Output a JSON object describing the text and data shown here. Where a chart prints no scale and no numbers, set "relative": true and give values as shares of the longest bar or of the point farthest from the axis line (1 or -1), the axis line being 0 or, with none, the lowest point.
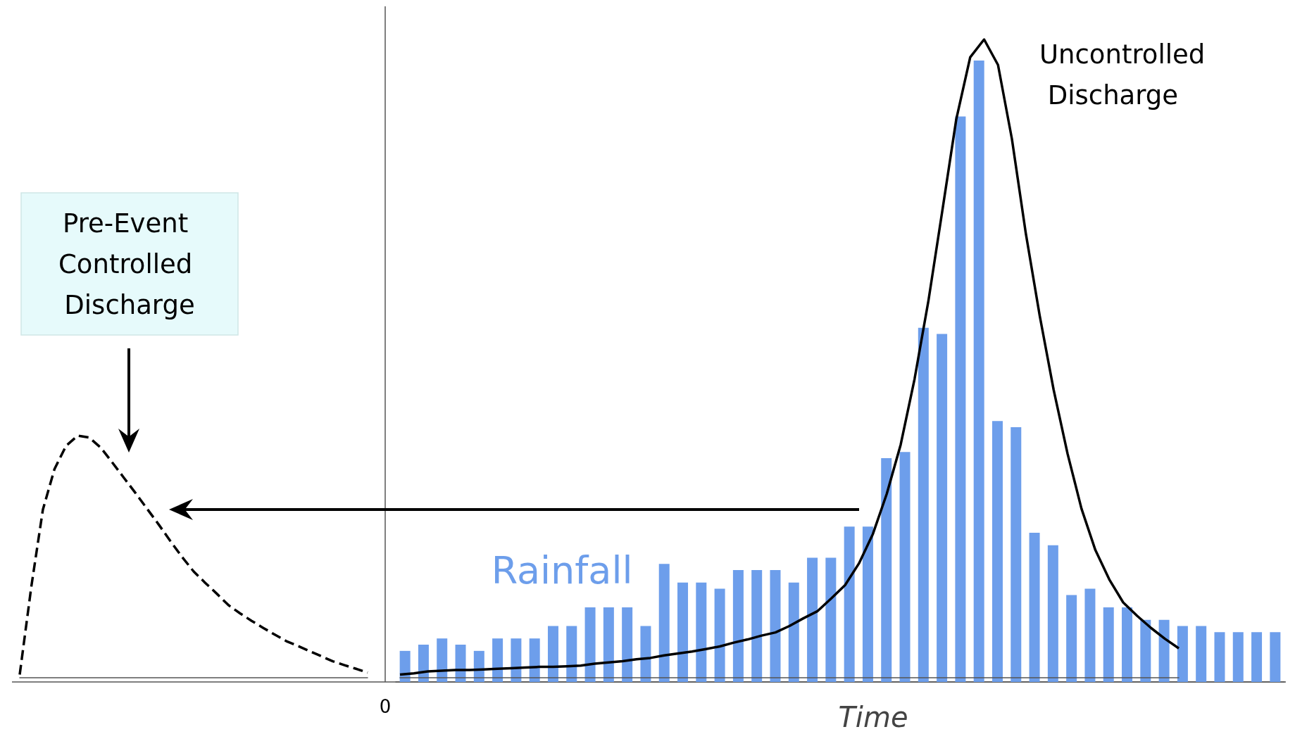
{
  "chart_data": [
    {
      "type": "bar",
      "relative": true,
      "xlabel": "Time",
      "annotations": [
        "0"
      ],
      "categories": [
        null,
        null,
        null,
        null,
        null,
        null,
        null,
        null,
        null,
        null,
        null,
        null,
        null,
        null,
        null,
        null,
        null,
        null,
        null,
        null,
        null,
        null,
        null,
        null,
        null,
        null,
        null,
        null,
        null,
        null,
        null,
        null,
        null,
        null,
        null,
        null,
        null,
        null,
        null,
        null,
        null,
        null,
        null,
        null,
        null,
        null,
        null,
        null
      ],
      "series": [
        {
          "name": "Rainfall",
          "color": "#6d9eeb",
          "values": [
            0.05,
            0.06,
            0.07,
            0.06,
            0.05,
            0.07,
            0.07,
            0.07,
            0.09,
            0.09,
            0.12,
            0.12,
            0.12,
            0.09,
            0.19,
            0.16,
            0.16,
            0.15,
            0.18,
            0.18,
            0.18,
            0.16,
            0.2,
            0.2,
            0.25,
            0.25,
            0.36,
            0.37,
            0.57,
            0.56,
            0.91,
            1,
            0.42,
            0.41,
            0.24,
            0.22,
            0.14,
            0.15,
            0.12,
            0.12,
            0.1,
            0.1,
            0.09,
            0.09,
            0.08,
            0.08,
            0.08,
            0.08
          ]
        }
      ]
    },
    {
      "type": "line",
      "relative": true,
      "marker": "none",
      "line_style": "solid",
      "categories": [
        null,
        null,
        null,
        null,
        null,
        null,
        null,
        null,
        null,
        null,
        null,
        null,
        null,
        null,
        null,
        null,
        null,
        null,
        null,
        null,
        null,
        null,
        null,
        null,
        null,
        null,
        null,
        null,
        null,
        null,
        null,
        null,
        null,
        null,
        null,
        null,
        null,
        null,
        null,
        null,
        null,
        null,
        null,
        null,
        null,
        null,
        null,
        null,
        null,
        null,
        null,
        null,
        null,
        null,
        null,
        null,
        null
      ],
      "series": [
        {
          "name": "Uncontrolled Discharge",
          "color": "#000000",
          "values": [
            0.005,
            0.007,
            0.01,
            0.011,
            0.012,
            0.012,
            0.013,
            0.014,
            0.015,
            0.016,
            0.017,
            0.017,
            0.018,
            0.019,
            0.022,
            0.024,
            0.026,
            0.029,
            0.031,
            0.035,
            0.038,
            0.041,
            0.045,
            0.049,
            0.055,
            0.06,
            0.066,
            0.071,
            0.081,
            0.093,
            0.104,
            0.124,
            0.145,
            0.179,
            0.225,
            0.288,
            0.365,
            0.468,
            0.591,
            0.732,
            0.875,
            0.972,
            1,
            0.96,
            0.844,
            0.696,
            0.567,
            0.451,
            0.351,
            0.265,
            0.2,
            0.154,
            0.118,
            0.097,
            0.078,
            0.061,
            0.046
          ]
        }
      ]
    },
    {
      "type": "line",
      "relative": true,
      "marker": "none",
      "line_style": "dashed",
      "categories": [
        null,
        null,
        null,
        null,
        null,
        null,
        null,
        null,
        null,
        null,
        null,
        null,
        null,
        null,
        null,
        null,
        null,
        null,
        null,
        null,
        null,
        null,
        null,
        null,
        null,
        null,
        null,
        null,
        null,
        null,
        null
      ],
      "series": [
        {
          "name": "Pre-Event Controlled Discharge",
          "color": "#000000",
          "values": [
            0.013,
            0.376,
            0.695,
            0.862,
            0.958,
            1,
            0.992,
            0.95,
            0.888,
            0.825,
            0.762,
            0.697,
            0.632,
            0.564,
            0.499,
            0.439,
            0.392,
            0.347,
            0.3,
            0.266,
            0.235,
            0.206,
            0.178,
            0.151,
            0.131,
            0.11,
            0.089,
            0.068,
            0.052,
            0.037,
            0.021
          ]
        }
      ]
    }
  ]
}
